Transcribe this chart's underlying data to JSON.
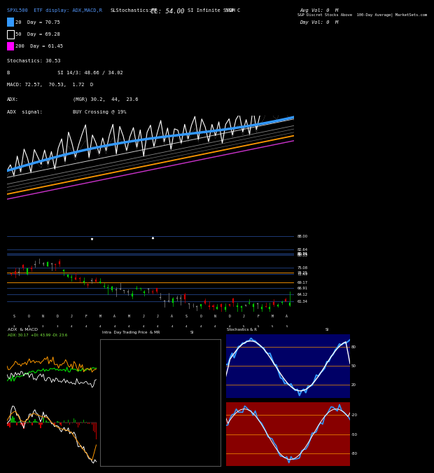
{
  "title_line1": "SPXL500 ETF display: ADX,MACD,R",
  "title_line2": "SLStochastics:MR",
  "title_cl": "CL: 54.00",
  "title_syoh": "SI Infinite SYOH",
  "title_sp": "S&P C",
  "title_avgvol": "Avg Vol: 0  M",
  "title_dayvol": "Day Vol: 0  M",
  "title_right": "S&P Discret Stocks Above  100-Day Average| MarketSets.com",
  "legend_20": "20  Day = 70.75",
  "legend_50": "50  Day = 69.28",
  "legend_200": "200  Day = 61.45",
  "stochastics": "Stochastics: 30.53",
  "b_si": "B                SI 14/3: 48.66 / 34.02",
  "macd_line": "MACD: 72.57,  70.53,  1.72  D",
  "adx_line": "ADX:",
  "adx_mgr": "(MGR) 30.2,  44,  23.6",
  "adx_signal": "ADX  signal:",
  "buy_crossing": "BUY Crossing @ 19%",
  "sub_adx_macd": "ADX  & MACD",
  "sub_adx_val": "ADX: 30.17  +DI: 43.99 -DI: 23.6",
  "sub_intraday": "Intra  Day Trading Price  & MR",
  "sub_si": "SI",
  "sub_stoch": "Stochastics & R",
  "sub_si2": "SI",
  "bg_color": "#000000",
  "line_white": "#ffffff",
  "line_blue": "#3399ff",
  "line_orange": "#ff9900",
  "line_magenta": "#cc33cc",
  "candle_up": "#00cc00",
  "candle_down": "#cc0000",
  "candle_neutral": "#888888",
  "hline_blue": "#3366cc",
  "hline_orange": "#ff9900",
  "stoch_bg_top": "#000066",
  "stoch_bg_bot": "#880000"
}
